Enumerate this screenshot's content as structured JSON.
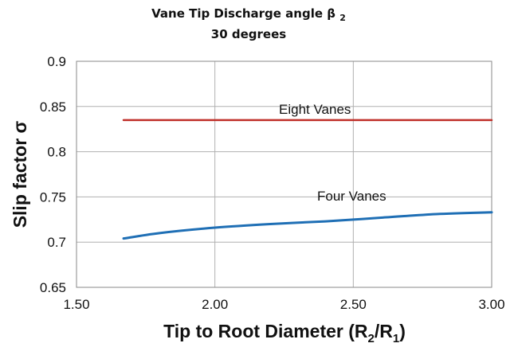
{
  "chart_data": {
    "type": "line",
    "title": "Vane Tip Discharge angle β2",
    "subtitle": "30 degrees",
    "xlabel": "Tip to Root Diameter (R2/R1)",
    "ylabel": "Slip factor σ",
    "xlim": [
      1.5,
      3.0
    ],
    "ylim": [
      0.65,
      0.9
    ],
    "x_ticks": [
      1.5,
      2.0,
      2.5,
      3.0
    ],
    "x_tick_labels": [
      "1.50",
      "2.00",
      "2.50",
      "3.00"
    ],
    "y_ticks": [
      0.65,
      0.7,
      0.75,
      0.8,
      0.85,
      0.9
    ],
    "y_tick_labels": [
      "0.65",
      "0.7",
      "0.75",
      "0.8",
      "0.85",
      "0.9"
    ],
    "grid": true,
    "series": [
      {
        "name": "Eight Vanes",
        "color": "#c0302a",
        "x": [
          1.67,
          2.0,
          2.5,
          3.0
        ],
        "y": [
          0.835,
          0.835,
          0.835,
          0.835
        ]
      },
      {
        "name": "Four Vanes",
        "color": "#1f6fb5",
        "x": [
          1.67,
          1.8,
          2.0,
          2.2,
          2.4,
          2.6,
          2.8,
          3.0
        ],
        "y": [
          0.704,
          0.71,
          0.716,
          0.72,
          0.723,
          0.727,
          0.731,
          0.733
        ]
      }
    ]
  }
}
